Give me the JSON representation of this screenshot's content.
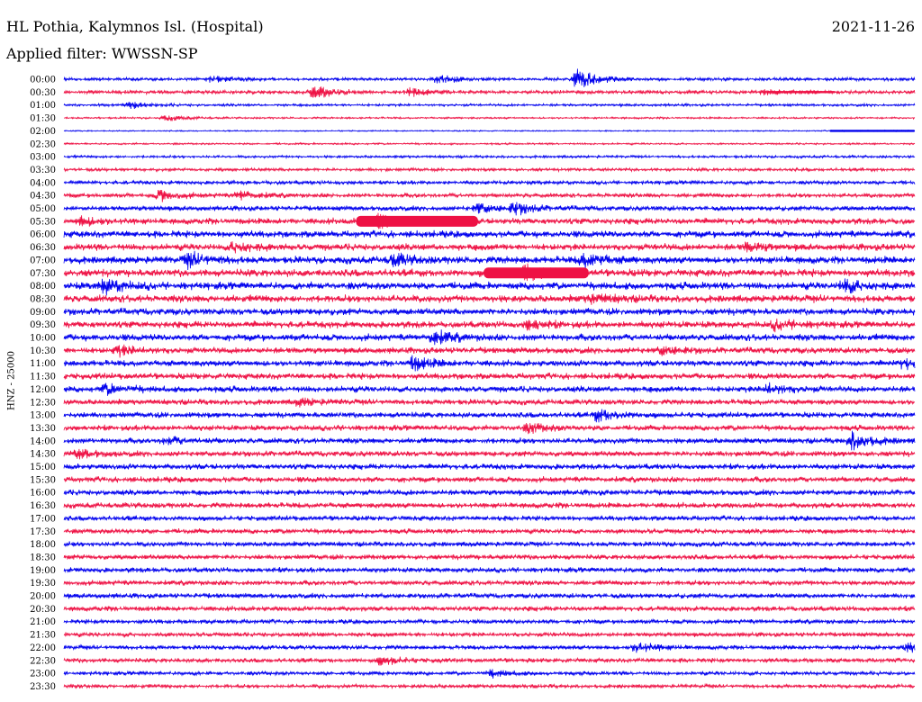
{
  "header": {
    "station": "HL Pothia, Kalymnos Isl. (Hospital)",
    "date": "2021-11-26",
    "filter_label": "Applied filter: WWSSN-SP",
    "channel_label": "HNZ - 25000"
  },
  "colors": {
    "even_trace": "#0000ee",
    "odd_trace": "#ee1144",
    "background": "#ffffff",
    "text": "#000000"
  },
  "chart_data": {
    "type": "helicorder",
    "title": "HL Pothia, Kalymnos Isl. (Hospital)",
    "date": "2021-11-26",
    "filter": "WWSSN-SP",
    "channel": "HNZ - 25000",
    "row_interval_minutes": 30,
    "x_range_minutes": [
      0,
      30
    ],
    "row_labels": [
      "00:00",
      "00:30",
      "01:00",
      "01:30",
      "02:00",
      "02:30",
      "03:00",
      "03:30",
      "04:00",
      "04:30",
      "05:00",
      "05:30",
      "06:00",
      "06:30",
      "07:00",
      "07:30",
      "08:00",
      "08:30",
      "09:00",
      "09:30",
      "10:00",
      "10:30",
      "11:00",
      "11:30",
      "12:00",
      "12:30",
      "13:00",
      "13:30",
      "14:00",
      "14:30",
      "15:00",
      "15:30",
      "16:00",
      "16:30",
      "17:00",
      "17:30",
      "18:00",
      "18:30",
      "19:00",
      "19:30",
      "20:00",
      "20:30",
      "21:00",
      "21:30",
      "22:00",
      "22:30",
      "23:00",
      "23:30"
    ],
    "color_pattern": [
      "blue",
      "red"
    ],
    "noise_level": [
      0.25,
      0.3,
      0.2,
      0.15,
      0.1,
      0.15,
      0.2,
      0.25,
      0.3,
      0.35,
      0.4,
      0.5,
      0.55,
      0.55,
      0.6,
      0.6,
      0.6,
      0.6,
      0.55,
      0.55,
      0.55,
      0.5,
      0.5,
      0.5,
      0.5,
      0.45,
      0.45,
      0.45,
      0.45,
      0.45,
      0.45,
      0.45,
      0.45,
      0.45,
      0.4,
      0.4,
      0.4,
      0.4,
      0.4,
      0.4,
      0.4,
      0.4,
      0.35,
      0.35,
      0.35,
      0.35,
      0.3,
      0.3
    ],
    "events": [
      {
        "row": 0,
        "minute": 5.2,
        "amplitude": 0.6
      },
      {
        "row": 0,
        "minute": 13.2,
        "amplitude": 0.8
      },
      {
        "row": 0,
        "minute": 18.1,
        "amplitude": 2.0
      },
      {
        "row": 1,
        "minute": 8.8,
        "amplitude": 1.2
      },
      {
        "row": 1,
        "minute": 12.2,
        "amplitude": 0.7
      },
      {
        "row": 1,
        "minute": 24.6,
        "amplitude": 0.4
      },
      {
        "row": 2,
        "minute": 2.3,
        "amplitude": 0.6
      },
      {
        "row": 3,
        "minute": 3.6,
        "amplitude": 0.5
      },
      {
        "row": 9,
        "minute": 3.4,
        "amplitude": 1.0
      },
      {
        "row": 9,
        "minute": 6.2,
        "amplitude": 0.8
      },
      {
        "row": 10,
        "minute": 14.6,
        "amplitude": 0.8
      },
      {
        "row": 10,
        "minute": 15.9,
        "amplitude": 1.0
      },
      {
        "row": 11,
        "minute": 0.6,
        "amplitude": 0.8
      },
      {
        "row": 11,
        "minute": 11.1,
        "amplitude": 1.2
      },
      {
        "row": 13,
        "minute": 6.0,
        "amplitude": 0.9
      },
      {
        "row": 13,
        "minute": 24.1,
        "amplitude": 0.7
      },
      {
        "row": 14,
        "minute": 4.4,
        "amplitude": 1.2
      },
      {
        "row": 14,
        "minute": 11.6,
        "amplitude": 1.0
      },
      {
        "row": 14,
        "minute": 18.3,
        "amplitude": 1.3
      },
      {
        "row": 15,
        "minute": 16.2,
        "amplitude": 1.4
      },
      {
        "row": 16,
        "minute": 1.4,
        "amplitude": 1.3
      },
      {
        "row": 16,
        "minute": 27.5,
        "amplitude": 1.2
      },
      {
        "row": 17,
        "minute": 18.6,
        "amplitude": 0.7
      },
      {
        "row": 19,
        "minute": 16.4,
        "amplitude": 0.8
      },
      {
        "row": 19,
        "minute": 25.1,
        "amplitude": 0.8
      },
      {
        "row": 20,
        "minute": 13.0,
        "amplitude": 1.2
      },
      {
        "row": 21,
        "minute": 1.9,
        "amplitude": 0.8
      },
      {
        "row": 21,
        "minute": 21.1,
        "amplitude": 0.7
      },
      {
        "row": 22,
        "minute": 12.3,
        "amplitude": 1.2
      },
      {
        "row": 22,
        "minute": 29.6,
        "amplitude": 0.8
      },
      {
        "row": 24,
        "minute": 1.5,
        "amplitude": 0.8
      },
      {
        "row": 24,
        "minute": 24.8,
        "amplitude": 0.9
      },
      {
        "row": 25,
        "minute": 8.3,
        "amplitude": 0.6
      },
      {
        "row": 26,
        "minute": 18.8,
        "amplitude": 1.0
      },
      {
        "row": 27,
        "minute": 16.4,
        "amplitude": 0.8
      },
      {
        "row": 28,
        "minute": 3.6,
        "amplitude": 0.6
      },
      {
        "row": 28,
        "minute": 27.8,
        "amplitude": 1.5
      },
      {
        "row": 29,
        "minute": 0.5,
        "amplitude": 0.7
      },
      {
        "row": 44,
        "minute": 20.2,
        "amplitude": 1.0
      },
      {
        "row": 44,
        "minute": 29.8,
        "amplitude": 0.8
      },
      {
        "row": 45,
        "minute": 11.2,
        "amplitude": 0.8
      },
      {
        "row": 46,
        "minute": 15.1,
        "amplitude": 0.6
      }
    ],
    "saturated_segments": [
      {
        "row": 1,
        "minute_start": 24.8,
        "minute_end": 27.2
      },
      {
        "row": 4,
        "minute_start": 27.0,
        "minute_end": 30.0
      },
      {
        "row": 11,
        "minute_start": 10.3,
        "minute_end": 14.6
      },
      {
        "row": 15,
        "minute_start": 14.8,
        "minute_end": 18.5
      }
    ]
  }
}
